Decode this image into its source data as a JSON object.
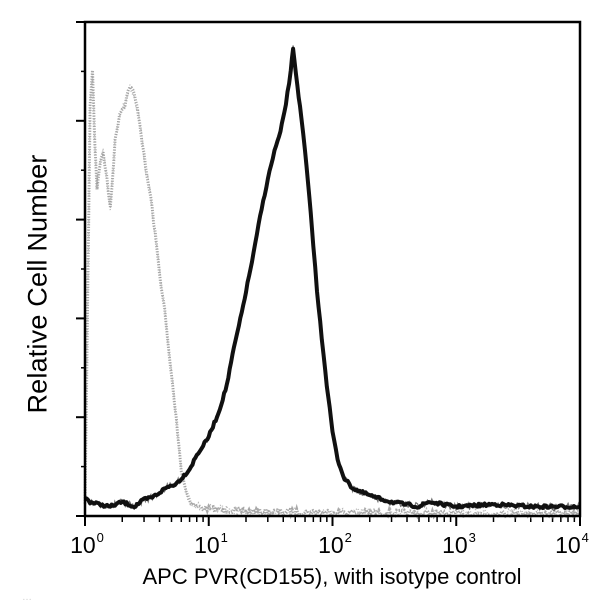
{
  "chart_data": {
    "type": "line",
    "subtype": "flow-cytometry-histogram-overlay",
    "title": "",
    "xlabel": "APC PVR(CD155), with isotype control",
    "ylabel": "Relative Cell Number",
    "xscale": "log",
    "xlim": [
      1,
      10000
    ],
    "ylim": [
      0,
      100
    ],
    "x_tick_labels": [
      {
        "base": "10",
        "exp": "0",
        "value": 1
      },
      {
        "base": "10",
        "exp": "1",
        "value": 10
      },
      {
        "base": "10",
        "exp": "2",
        "value": 100
      },
      {
        "base": "10",
        "exp": "3",
        "value": 1000
      },
      {
        "base": "10",
        "exp": "4",
        "value": 10000
      }
    ],
    "y_major_ticks": [
      0,
      20,
      40,
      60,
      80,
      100
    ],
    "y_tick_labels_shown": false,
    "grid": false,
    "legend": null,
    "series": [
      {
        "name": "Isotype control",
        "color": "#9a9a9a",
        "style": "dotted-noisy",
        "points": [
          [
            1.0,
            2
          ],
          [
            1.05,
            45
          ],
          [
            1.1,
            88
          ],
          [
            1.15,
            95
          ],
          [
            1.2,
            80
          ],
          [
            1.25,
            70
          ],
          [
            1.3,
            74
          ],
          [
            1.4,
            78
          ],
          [
            1.5,
            72
          ],
          [
            1.6,
            66
          ],
          [
            1.75,
            80
          ],
          [
            1.9,
            86
          ],
          [
            2.1,
            88
          ],
          [
            2.3,
            92
          ],
          [
            2.5,
            90
          ],
          [
            2.7,
            86
          ],
          [
            2.9,
            80
          ],
          [
            3.1,
            74
          ],
          [
            3.4,
            68
          ],
          [
            3.7,
            60
          ],
          [
            4.0,
            52
          ],
          [
            4.4,
            44
          ],
          [
            4.8,
            34
          ],
          [
            5.2,
            26
          ],
          [
            5.6,
            18
          ],
          [
            6.0,
            10
          ],
          [
            6.6,
            5
          ],
          [
            7.2,
            3
          ],
          [
            8.0,
            2
          ],
          [
            10,
            1.5
          ],
          [
            20,
            1
          ],
          [
            100,
            0.8
          ],
          [
            1000,
            0.5
          ],
          [
            10000,
            0.5
          ]
        ]
      },
      {
        "name": "APC PVR (CD155)",
        "color": "#111111",
        "style": "thick-noisy",
        "points": [
          [
            1.0,
            4
          ],
          [
            1.1,
            3
          ],
          [
            1.3,
            2.5
          ],
          [
            1.6,
            2
          ],
          [
            2.0,
            3
          ],
          [
            2.5,
            2
          ],
          [
            3.0,
            3.5
          ],
          [
            3.5,
            4
          ],
          [
            4.0,
            5
          ],
          [
            4.5,
            6
          ],
          [
            5.0,
            6.5
          ],
          [
            5.5,
            7
          ],
          [
            6.0,
            8
          ],
          [
            7.0,
            10
          ],
          [
            8.0,
            13
          ],
          [
            9.0,
            15
          ],
          [
            10,
            17
          ],
          [
            12,
            22
          ],
          [
            14,
            28
          ],
          [
            16,
            36
          ],
          [
            18,
            42
          ],
          [
            20,
            48
          ],
          [
            23,
            56
          ],
          [
            26,
            64
          ],
          [
            30,
            72
          ],
          [
            34,
            78
          ],
          [
            38,
            82
          ],
          [
            42,
            88
          ],
          [
            46,
            95
          ],
          [
            48,
            100
          ],
          [
            52,
            92
          ],
          [
            56,
            85
          ],
          [
            60,
            78
          ],
          [
            65,
            68
          ],
          [
            70,
            58
          ],
          [
            75,
            48
          ],
          [
            82,
            38
          ],
          [
            90,
            28
          ],
          [
            100,
            18
          ],
          [
            110,
            12
          ],
          [
            125,
            8
          ],
          [
            145,
            6
          ],
          [
            175,
            5
          ],
          [
            220,
            4
          ],
          [
            300,
            3
          ],
          [
            500,
            2
          ],
          [
            600,
            3
          ],
          [
            1000,
            2
          ],
          [
            2000,
            2.5
          ],
          [
            4000,
            2
          ],
          [
            10000,
            2
          ]
        ]
      }
    ]
  },
  "labels": {
    "ylabel": "Relative Cell Number",
    "xlabel": "APC PVR(CD155), with isotype control",
    "footer_cutoff": "…"
  },
  "colors": {
    "frame": "#000000",
    "isotype": "#9a9a9a",
    "sample": "#111111",
    "background": "#ffffff"
  }
}
